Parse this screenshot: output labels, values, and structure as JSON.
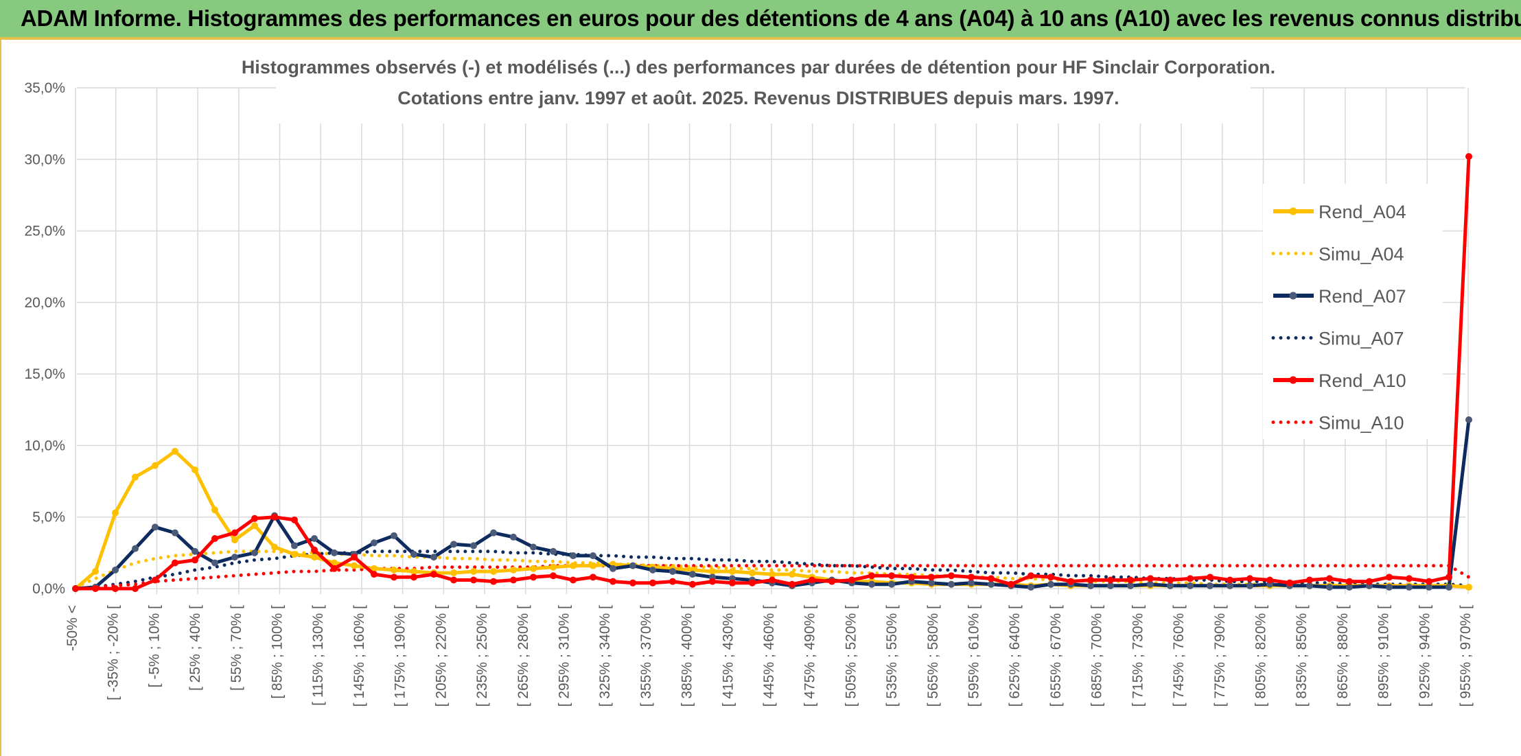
{
  "banner": {
    "title": "ADAM Informe. Histogrammes des performances en euros pour des détentions de 4 ans (A04) à 10 ans (A10) avec les revenus connus distribués"
  },
  "colors": {
    "banner_bg": "#87c97f",
    "accent": "#e5c04a",
    "A04": "#ffc000",
    "A07": "#0d2b5e",
    "A07_marker": "#4a5a78",
    "A10": "#ff0000",
    "grid": "#d9d9d9",
    "text": "#595959"
  },
  "chart_data": {
    "type": "line",
    "title": "Histogrammes observés (-) et modélisés (...) des performances par durées de détention pour HF Sinclair Corporation.",
    "subtitle": "Cotations entre janv. 1997 et août. 2025. Revenus DISTRIBUES depuis mars. 1997.",
    "ylim": [
      0,
      35
    ],
    "ytick_labels": [
      "0,0%",
      "5,0%",
      "10,0%",
      "15,0%",
      "20,0%",
      "25,0%",
      "30,0%",
      "35,0%"
    ],
    "grid": true,
    "legend_position": "right",
    "x_labels": [
      "-50% <",
      "[ -35% ; -20% [",
      "[ -5% ; 10% [",
      "[ 25% ; 40% [",
      "[ 55% ; 70% [",
      "[ 85% ; 100% [",
      "[ 115% ; 130% [",
      "[ 145% ; 160% [",
      "[ 175% ; 190% [",
      "[ 205% ; 220% [",
      "[ 235% ; 250% [",
      "[ 265% ; 280% [",
      "[ 295% ; 310% [",
      "[ 325% ; 340% [",
      "[ 355% ; 370% [",
      "[ 385% ; 400% [",
      "[ 415% ; 430% [",
      "[ 445% ; 460% [",
      "[ 475% ; 490% [",
      "[ 505% ; 520% [",
      "[ 535% ; 550% [",
      "[ 565% ; 580% [",
      "[ 595% ; 610% [",
      "[ 625% ; 640% [",
      "[ 655% ; 670% [",
      "[ 685% ; 700% [",
      "[ 715% ; 730% [",
      "[ 745% ; 760% [",
      "[ 775% ; 790% [",
      "[ 805% ; 820% [",
      "[ 835% ; 850% [",
      "[ 865% ; 880% [",
      "[ 895% ; 910% [",
      "[ 925% ; 940% [",
      "[ 955% ; 970% ["
    ],
    "series": [
      {
        "name": "Rend_A04",
        "style": "solid",
        "color": "#ffc000",
        "values": [
          0.0,
          1.2,
          5.3,
          7.8,
          8.6,
          9.6,
          8.3,
          5.5,
          3.4,
          4.4,
          2.9,
          2.4,
          2.2,
          1.8,
          1.6,
          1.4,
          1.3,
          1.2,
          1.1,
          1.1,
          1.2,
          1.2,
          1.3,
          1.4,
          1.5,
          1.6,
          1.6,
          1.7,
          1.6,
          1.5,
          1.4,
          1.3,
          1.2,
          1.2,
          1.1,
          1.0,
          1.0,
          0.8,
          0.6,
          0.5,
          0.5,
          0.4,
          0.4,
          0.3,
          0.3,
          0.3,
          0.3,
          0.3,
          0.2,
          0.3,
          0.2,
          0.2,
          0.2,
          0.2,
          0.2,
          0.2,
          0.2,
          0.2,
          0.2,
          0.2,
          0.2,
          0.2,
          0.2,
          0.2,
          0.2,
          0.2,
          0.2,
          0.2,
          0.2,
          0.2,
          0.1
        ]
      },
      {
        "name": "Simu_A04",
        "style": "dotted",
        "color": "#ffc000",
        "values": [
          0.1,
          0.7,
          1.3,
          1.8,
          2.1,
          2.3,
          2.4,
          2.5,
          2.6,
          2.6,
          2.6,
          2.5,
          2.5,
          2.4,
          2.4,
          2.3,
          2.3,
          2.2,
          2.2,
          2.1,
          2.1,
          2.0,
          2.0,
          1.9,
          1.9,
          1.8,
          1.8,
          1.7,
          1.7,
          1.6,
          1.6,
          1.5,
          1.5,
          1.4,
          1.4,
          1.3,
          1.3,
          1.2,
          1.2,
          1.1,
          1.1,
          1.0,
          1.0,
          0.9,
          0.9,
          0.8,
          0.8,
          0.7,
          0.7,
          0.6,
          0.6,
          0.5,
          0.5,
          0.5,
          0.4,
          0.4,
          0.4,
          0.3,
          0.3,
          0.3,
          0.3,
          0.2,
          0.2,
          0.2,
          0.2,
          0.2,
          0.2,
          0.2,
          0.2,
          0.2,
          0.1
        ]
      },
      {
        "name": "Rend_A07",
        "style": "solid",
        "color": "#0d2b5e",
        "values": [
          0.0,
          0.1,
          1.3,
          2.8,
          4.3,
          3.9,
          2.6,
          1.8,
          2.2,
          2.5,
          5.1,
          3.0,
          3.5,
          2.5,
          2.4,
          3.2,
          3.7,
          2.4,
          2.2,
          3.1,
          3.0,
          3.9,
          3.6,
          2.9,
          2.6,
          2.3,
          2.3,
          1.4,
          1.6,
          1.3,
          1.2,
          1.0,
          0.8,
          0.7,
          0.6,
          0.4,
          0.2,
          0.4,
          0.6,
          0.4,
          0.3,
          0.3,
          0.5,
          0.4,
          0.3,
          0.4,
          0.3,
          0.2,
          0.1,
          0.3,
          0.3,
          0.2,
          0.2,
          0.2,
          0.3,
          0.2,
          0.2,
          0.2,
          0.2,
          0.2,
          0.3,
          0.2,
          0.2,
          0.1,
          0.1,
          0.2,
          0.1,
          0.1,
          0.1,
          0.1,
          11.8
        ]
      },
      {
        "name": "Simu_A07",
        "style": "dotted",
        "color": "#0d2b5e",
        "values": [
          0.0,
          0.1,
          0.3,
          0.5,
          0.8,
          1.0,
          1.3,
          1.5,
          1.8,
          2.0,
          2.1,
          2.3,
          2.4,
          2.5,
          2.5,
          2.6,
          2.6,
          2.6,
          2.6,
          2.6,
          2.6,
          2.6,
          2.5,
          2.5,
          2.4,
          2.4,
          2.3,
          2.3,
          2.2,
          2.2,
          2.1,
          2.1,
          2.0,
          2.0,
          1.9,
          1.9,
          1.8,
          1.7,
          1.6,
          1.6,
          1.5,
          1.4,
          1.4,
          1.3,
          1.3,
          1.2,
          1.1,
          1.1,
          1.0,
          1.0,
          0.9,
          0.9,
          0.8,
          0.8,
          0.7,
          0.7,
          0.6,
          0.6,
          0.5,
          0.5,
          0.5,
          0.4,
          0.4,
          0.4,
          0.3,
          0.3,
          0.3,
          0.3,
          0.3,
          0.3,
          0.2
        ]
      },
      {
        "name": "Rend_A10",
        "style": "solid",
        "color": "#ff0000",
        "values": [
          0.0,
          0.0,
          0.0,
          0.0,
          0.6,
          1.8,
          2.0,
          3.5,
          3.9,
          4.9,
          5.0,
          4.8,
          2.7,
          1.4,
          2.2,
          1.0,
          0.8,
          0.8,
          1.0,
          0.6,
          0.6,
          0.5,
          0.6,
          0.8,
          0.9,
          0.6,
          0.8,
          0.5,
          0.4,
          0.4,
          0.5,
          0.3,
          0.5,
          0.4,
          0.4,
          0.6,
          0.3,
          0.6,
          0.5,
          0.6,
          0.9,
          0.9,
          0.8,
          0.8,
          0.9,
          0.8,
          0.7,
          0.3,
          0.9,
          0.8,
          0.5,
          0.6,
          0.6,
          0.6,
          0.7,
          0.6,
          0.7,
          0.8,
          0.6,
          0.7,
          0.6,
          0.4,
          0.6,
          0.7,
          0.5,
          0.5,
          0.8,
          0.7,
          0.5,
          0.8,
          30.2
        ]
      },
      {
        "name": "Simu_A10",
        "style": "dotted",
        "color": "#ff0000",
        "values": [
          0.0,
          0.1,
          0.2,
          0.3,
          0.5,
          0.6,
          0.7,
          0.8,
          0.9,
          1.0,
          1.1,
          1.2,
          1.2,
          1.3,
          1.3,
          1.4,
          1.4,
          1.4,
          1.5,
          1.5,
          1.5,
          1.5,
          1.5,
          1.5,
          1.6,
          1.6,
          1.6,
          1.6,
          1.6,
          1.6,
          1.6,
          1.6,
          1.6,
          1.6,
          1.6,
          1.6,
          1.6,
          1.6,
          1.6,
          1.6,
          1.6,
          1.6,
          1.6,
          1.6,
          1.6,
          1.6,
          1.6,
          1.6,
          1.6,
          1.6,
          1.6,
          1.6,
          1.6,
          1.6,
          1.6,
          1.6,
          1.6,
          1.6,
          1.6,
          1.6,
          1.6,
          1.6,
          1.6,
          1.6,
          1.6,
          1.6,
          1.6,
          1.6,
          1.6,
          1.6,
          0.8
        ]
      }
    ]
  }
}
